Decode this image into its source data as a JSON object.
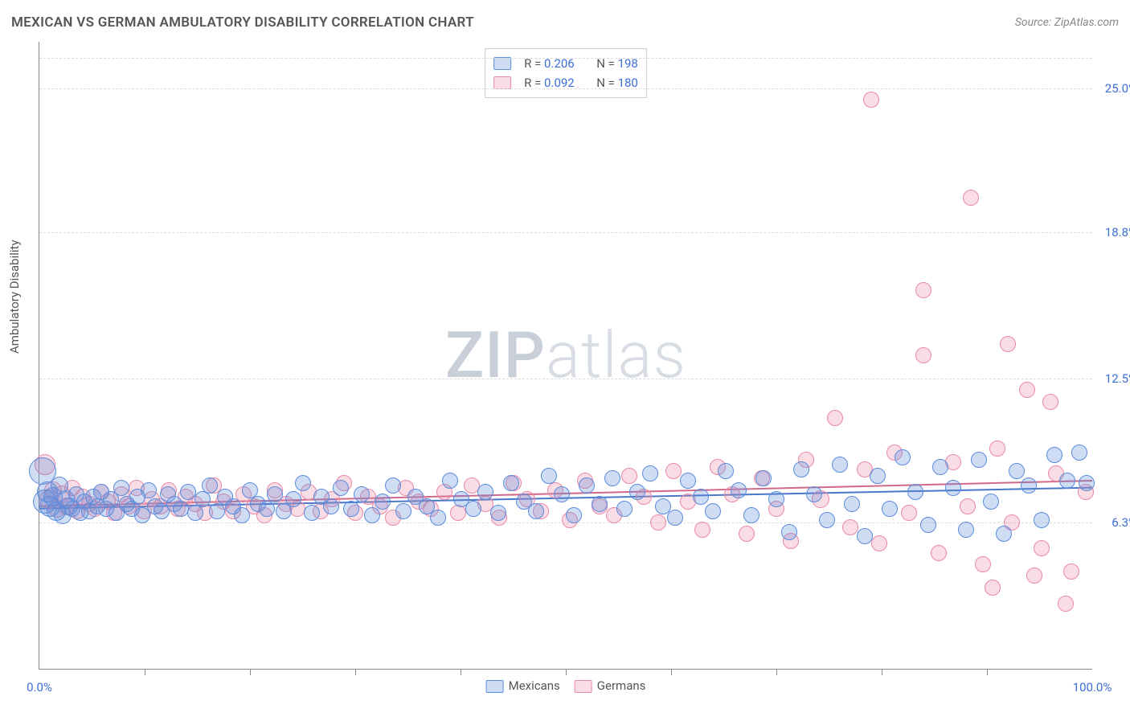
{
  "title": "MEXICAN VS GERMAN AMBULATORY DISABILITY CORRELATION CHART",
  "source": "Source: ZipAtlas.com",
  "ylabel": "Ambulatory Disability",
  "watermark_left": "ZIP",
  "watermark_right": "atlas",
  "chart": {
    "type": "scatter",
    "xlim": [
      0,
      100
    ],
    "ylim": [
      0,
      27
    ],
    "background_color": "#ffffff",
    "grid_color": "#dddddd",
    "grid_dashed": true,
    "axis_color": "#888888",
    "tick_color_value": "#3b6fd6",
    "y_ticks": [
      {
        "v": 6.3,
        "label": "6.3%"
      },
      {
        "v": 12.5,
        "label": "12.5%"
      },
      {
        "v": 18.8,
        "label": "18.8%"
      },
      {
        "v": 25.0,
        "label": "25.0%"
      }
    ],
    "x_ticks_minor": [
      10,
      20,
      30,
      40,
      50,
      60,
      70,
      80,
      90
    ],
    "x_ticks_labeled": [
      {
        "v": 0,
        "label": "0.0%"
      },
      {
        "v": 100,
        "label": "100.0%"
      }
    ],
    "marker_radius_base": 9,
    "marker_radius_jitter": 4,
    "fill_opacity": 0.28,
    "series": [
      {
        "key": "mexicans",
        "label": "Mexicans",
        "r_stat": "0.206",
        "n_stat": "198",
        "color_fill": "rgba(92,140,220,0.30)",
        "color_stroke": "#5c8cdc",
        "trend": {
          "y0": 6.9,
          "y1": 7.8,
          "stroke": "#4a78c8",
          "width": 2
        }
      },
      {
        "key": "germans",
        "label": "Germans",
        "r_stat": "0.092",
        "n_stat": "180",
        "color_fill": "rgba(235,140,165,0.30)",
        "color_stroke": "#e98aa7",
        "trend": {
          "y0": 7.0,
          "y1": 8.1,
          "stroke": "#d06a8a",
          "width": 2
        }
      }
    ],
    "legend_top": {
      "r_label": "R =",
      "n_label": "N ="
    },
    "legend_bottom_labels": [
      "Mexicans",
      "Germans"
    ],
    "mex_points": [
      [
        0.3,
        8.5,
        16
      ],
      [
        0.5,
        7.2,
        14
      ],
      [
        0.8,
        7.6,
        12
      ],
      [
        1.0,
        7.0,
        12
      ],
      [
        1.3,
        7.4,
        11
      ],
      [
        1.6,
        6.8,
        11
      ],
      [
        1.9,
        7.9,
        10
      ],
      [
        2.2,
        6.6,
        10
      ],
      [
        2.5,
        7.3,
        10
      ],
      [
        2.8,
        7.0,
        10
      ],
      [
        3.1,
        6.9,
        9
      ],
      [
        3.5,
        7.5,
        9
      ],
      [
        3.9,
        6.7,
        9
      ],
      [
        4.3,
        7.2,
        9
      ],
      [
        4.7,
        6.8,
        9
      ],
      [
        5.1,
        7.4,
        9
      ],
      [
        5.5,
        7.0,
        9
      ],
      [
        5.9,
        7.6,
        9
      ],
      [
        6.3,
        6.9,
        9
      ],
      [
        6.8,
        7.3,
        9
      ],
      [
        7.3,
        6.7,
        9
      ],
      [
        7.8,
        7.8,
        9
      ],
      [
        8.3,
        7.1,
        9
      ],
      [
        8.8,
        6.9,
        9
      ],
      [
        9.3,
        7.4,
        9
      ],
      [
        9.8,
        6.6,
        9
      ],
      [
        10.4,
        7.7,
        9
      ],
      [
        11.0,
        7.0,
        9
      ],
      [
        11.6,
        6.8,
        9
      ],
      [
        12.2,
        7.5,
        9
      ],
      [
        12.8,
        7.1,
        9
      ],
      [
        13.4,
        6.9,
        9
      ],
      [
        14.1,
        7.6,
        9
      ],
      [
        14.8,
        6.7,
        9
      ],
      [
        15.5,
        7.3,
        9
      ],
      [
        16.2,
        7.9,
        9
      ],
      [
        16.9,
        6.8,
        9
      ],
      [
        17.6,
        7.4,
        9
      ],
      [
        18.4,
        7.0,
        9
      ],
      [
        19.2,
        6.6,
        9
      ],
      [
        20.0,
        7.7,
        9
      ],
      [
        20.8,
        7.1,
        9
      ],
      [
        21.6,
        6.9,
        9
      ],
      [
        22.4,
        7.5,
        9
      ],
      [
        23.2,
        6.8,
        9
      ],
      [
        24.1,
        7.3,
        9
      ],
      [
        25.0,
        8.0,
        9
      ],
      [
        25.9,
        6.7,
        9
      ],
      [
        26.8,
        7.4,
        9
      ],
      [
        27.7,
        7.0,
        9
      ],
      [
        28.6,
        7.8,
        9
      ],
      [
        29.6,
        6.9,
        9
      ],
      [
        30.6,
        7.5,
        9
      ],
      [
        31.6,
        6.6,
        9
      ],
      [
        32.6,
        7.2,
        9
      ],
      [
        33.6,
        7.9,
        9
      ],
      [
        34.6,
        6.8,
        9
      ],
      [
        35.7,
        7.4,
        9
      ],
      [
        36.8,
        7.0,
        9
      ],
      [
        37.9,
        6.5,
        9
      ],
      [
        39.0,
        8.1,
        9
      ],
      [
        40.1,
        7.3,
        9
      ],
      [
        41.2,
        6.9,
        9
      ],
      [
        42.4,
        7.6,
        9
      ],
      [
        43.6,
        6.7,
        9
      ],
      [
        44.8,
        8.0,
        9
      ],
      [
        46.0,
        7.2,
        9
      ],
      [
        47.2,
        6.8,
        9
      ],
      [
        48.4,
        8.3,
        9
      ],
      [
        49.6,
        7.5,
        9
      ],
      [
        50.8,
        6.6,
        9
      ],
      [
        52.0,
        7.9,
        9
      ],
      [
        53.2,
        7.1,
        9
      ],
      [
        54.4,
        8.2,
        9
      ],
      [
        55.6,
        6.9,
        9
      ],
      [
        56.8,
        7.6,
        9
      ],
      [
        58.0,
        8.4,
        9
      ],
      [
        59.2,
        7.0,
        9
      ],
      [
        60.4,
        6.5,
        9
      ],
      [
        61.6,
        8.1,
        9
      ],
      [
        62.8,
        7.4,
        9
      ],
      [
        64.0,
        6.8,
        9
      ],
      [
        65.2,
        8.5,
        9
      ],
      [
        66.4,
        7.7,
        9
      ],
      [
        67.6,
        6.6,
        9
      ],
      [
        68.8,
        8.2,
        9
      ],
      [
        70.0,
        7.3,
        9
      ],
      [
        71.2,
        5.9,
        9
      ],
      [
        72.4,
        8.6,
        9
      ],
      [
        73.6,
        7.5,
        9
      ],
      [
        74.8,
        6.4,
        9
      ],
      [
        76.0,
        8.8,
        9
      ],
      [
        77.2,
        7.1,
        9
      ],
      [
        78.4,
        5.7,
        9
      ],
      [
        79.6,
        8.3,
        9
      ],
      [
        80.8,
        6.9,
        9
      ],
      [
        82.0,
        9.1,
        9
      ],
      [
        83.2,
        7.6,
        9
      ],
      [
        84.4,
        6.2,
        9
      ],
      [
        85.6,
        8.7,
        9
      ],
      [
        86.8,
        7.8,
        9
      ],
      [
        88.0,
        6.0,
        9
      ],
      [
        89.2,
        9.0,
        9
      ],
      [
        90.4,
        7.2,
        9
      ],
      [
        91.6,
        5.8,
        9
      ],
      [
        92.8,
        8.5,
        9
      ],
      [
        94.0,
        7.9,
        9
      ],
      [
        95.2,
        6.4,
        9
      ],
      [
        96.4,
        9.2,
        9
      ],
      [
        97.6,
        8.1,
        9
      ],
      [
        98.8,
        9.3,
        9
      ],
      [
        99.5,
        8.0,
        9
      ]
    ],
    "ger_points": [
      [
        0.5,
        8.8,
        12
      ],
      [
        0.9,
        7.3,
        11
      ],
      [
        1.3,
        7.7,
        10
      ],
      [
        1.7,
        6.9,
        10
      ],
      [
        2.1,
        7.5,
        10
      ],
      [
        2.6,
        7.0,
        10
      ],
      [
        3.1,
        7.8,
        9
      ],
      [
        3.6,
        6.8,
        9
      ],
      [
        4.1,
        7.4,
        9
      ],
      [
        4.7,
        7.1,
        9
      ],
      [
        5.3,
        6.9,
        9
      ],
      [
        5.9,
        7.6,
        9
      ],
      [
        6.5,
        7.2,
        9
      ],
      [
        7.1,
        6.7,
        9
      ],
      [
        7.8,
        7.5,
        9
      ],
      [
        8.5,
        7.0,
        9
      ],
      [
        9.2,
        7.8,
        9
      ],
      [
        9.9,
        6.8,
        9
      ],
      [
        10.7,
        7.3,
        9
      ],
      [
        11.5,
        7.0,
        9
      ],
      [
        12.3,
        7.7,
        9
      ],
      [
        13.1,
        6.9,
        9
      ],
      [
        13.9,
        7.4,
        9
      ],
      [
        14.8,
        7.1,
        9
      ],
      [
        15.7,
        6.7,
        9
      ],
      [
        16.6,
        7.9,
        9
      ],
      [
        17.5,
        7.2,
        9
      ],
      [
        18.4,
        6.8,
        9
      ],
      [
        19.4,
        7.5,
        9
      ],
      [
        20.4,
        7.0,
        9
      ],
      [
        21.4,
        6.6,
        9
      ],
      [
        22.4,
        7.7,
        9
      ],
      [
        23.4,
        7.1,
        9
      ],
      [
        24.5,
        6.9,
        9
      ],
      [
        25.6,
        7.6,
        9
      ],
      [
        26.7,
        6.8,
        9
      ],
      [
        27.8,
        7.3,
        9
      ],
      [
        28.9,
        8.0,
        9
      ],
      [
        30.0,
        6.7,
        9
      ],
      [
        31.2,
        7.4,
        9
      ],
      [
        32.4,
        7.0,
        9
      ],
      [
        33.6,
        6.5,
        9
      ],
      [
        34.8,
        7.8,
        9
      ],
      [
        36.0,
        7.2,
        9
      ],
      [
        37.2,
        6.9,
        9
      ],
      [
        38.5,
        7.6,
        9
      ],
      [
        39.8,
        6.7,
        9
      ],
      [
        41.1,
        7.9,
        9
      ],
      [
        42.4,
        7.1,
        9
      ],
      [
        43.7,
        6.5,
        9
      ],
      [
        45.0,
        8.0,
        9
      ],
      [
        46.3,
        7.3,
        9
      ],
      [
        47.6,
        6.8,
        9
      ],
      [
        49.0,
        7.7,
        9
      ],
      [
        50.4,
        6.4,
        9
      ],
      [
        51.8,
        8.1,
        9
      ],
      [
        53.2,
        7.0,
        9
      ],
      [
        54.6,
        6.6,
        9
      ],
      [
        56.0,
        8.3,
        9
      ],
      [
        57.4,
        7.4,
        9
      ],
      [
        58.8,
        6.3,
        9
      ],
      [
        60.2,
        8.5,
        9
      ],
      [
        61.6,
        7.2,
        9
      ],
      [
        63.0,
        6.0,
        9
      ],
      [
        64.4,
        8.7,
        9
      ],
      [
        65.8,
        7.5,
        9
      ],
      [
        67.2,
        5.8,
        9
      ],
      [
        68.6,
        8.2,
        9
      ],
      [
        70.0,
        6.9,
        9
      ],
      [
        71.4,
        5.5,
        9
      ],
      [
        72.8,
        9.0,
        9
      ],
      [
        74.2,
        7.3,
        10
      ],
      [
        75.6,
        10.8,
        9
      ],
      [
        77.0,
        6.1,
        9
      ],
      [
        78.4,
        8.6,
        9
      ],
      [
        79.8,
        5.4,
        9
      ],
      [
        79.0,
        24.5,
        9
      ],
      [
        81.2,
        9.3,
        9
      ],
      [
        82.6,
        6.7,
        9
      ],
      [
        84.0,
        13.5,
        9
      ],
      [
        84.0,
        16.3,
        9
      ],
      [
        85.4,
        5.0,
        9
      ],
      [
        86.8,
        8.9,
        9
      ],
      [
        88.2,
        7.0,
        9
      ],
      [
        88.5,
        20.3,
        9
      ],
      [
        89.6,
        4.5,
        9
      ],
      [
        91.0,
        9.5,
        9
      ],
      [
        92.4,
        6.3,
        9
      ],
      [
        93.8,
        12.0,
        9
      ],
      [
        92.0,
        14.0,
        9
      ],
      [
        95.2,
        5.2,
        9
      ],
      [
        96.6,
        8.4,
        9
      ],
      [
        98.0,
        4.2,
        9
      ],
      [
        97.5,
        2.8,
        9
      ],
      [
        96.0,
        11.5,
        9
      ],
      [
        99.4,
        7.6,
        9
      ],
      [
        94.5,
        4.0,
        9
      ],
      [
        90.5,
        3.5,
        9
      ]
    ]
  }
}
